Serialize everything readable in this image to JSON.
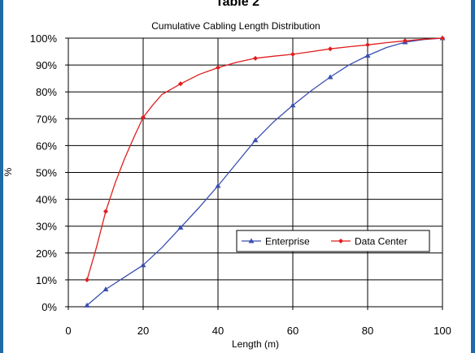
{
  "page_header": "Table 2",
  "chart_data": {
    "type": "line",
    "title": "Cumulative Cabling Length Distribution",
    "xlabel": "Length (m)",
    "ylabel": "%",
    "xlim": [
      0,
      100
    ],
    "ylim": [
      0,
      100
    ],
    "x_ticks": [
      "0",
      "20",
      "40",
      "60",
      "80",
      "100"
    ],
    "y_ticks": [
      "0%",
      "10%",
      "20%",
      "30%",
      "40%",
      "50%",
      "60%",
      "70%",
      "80%",
      "90%",
      "100%"
    ],
    "grid": true,
    "legend_position": "right-middle",
    "series": [
      {
        "name": "Enterprise",
        "color": "#3a4fb0",
        "marker": "triangle",
        "points": [
          [
            5,
            0.5
          ],
          [
            10,
            6.5
          ],
          [
            20,
            15.5
          ],
          [
            30,
            29.5
          ],
          [
            40,
            45
          ],
          [
            50,
            62
          ],
          [
            60,
            75
          ],
          [
            70,
            85.5
          ],
          [
            80,
            93.5
          ],
          [
            90,
            98.5
          ],
          [
            100,
            100
          ]
        ],
        "curve": [
          [
            5,
            0.5
          ],
          [
            10,
            6.5
          ],
          [
            15,
            11
          ],
          [
            20,
            15.5
          ],
          [
            25,
            22
          ],
          [
            30,
            29.5
          ],
          [
            35,
            37
          ],
          [
            40,
            45
          ],
          [
            45,
            53.5
          ],
          [
            50,
            62
          ],
          [
            55,
            69
          ],
          [
            60,
            75
          ],
          [
            65,
            80.5
          ],
          [
            70,
            85.5
          ],
          [
            75,
            90
          ],
          [
            80,
            93.5
          ],
          [
            85,
            96.5
          ],
          [
            90,
            98.5
          ],
          [
            95,
            99.5
          ],
          [
            100,
            100
          ]
        ]
      },
      {
        "name": "Data Center",
        "color": "#e01d1d",
        "marker": "diamond",
        "points": [
          [
            5,
            10
          ],
          [
            10,
            35.5
          ],
          [
            20,
            70.5
          ],
          [
            30,
            83
          ],
          [
            40,
            89
          ],
          [
            50,
            92.5
          ],
          [
            60,
            94
          ],
          [
            70,
            96
          ],
          [
            80,
            97.5
          ],
          [
            90,
            99
          ],
          [
            100,
            100
          ]
        ],
        "curve": [
          [
            5,
            10
          ],
          [
            7.5,
            22
          ],
          [
            10,
            35.5
          ],
          [
            12.5,
            46
          ],
          [
            15,
            55
          ],
          [
            17.5,
            63
          ],
          [
            20,
            70.5
          ],
          [
            22.5,
            75
          ],
          [
            25,
            79
          ],
          [
            27.5,
            81
          ],
          [
            30,
            83
          ],
          [
            35,
            86.5
          ],
          [
            40,
            89
          ],
          [
            45,
            91
          ],
          [
            50,
            92.5
          ],
          [
            55,
            93.3
          ],
          [
            60,
            94
          ],
          [
            65,
            95
          ],
          [
            70,
            96
          ],
          [
            75,
            96.8
          ],
          [
            80,
            97.5
          ],
          [
            85,
            98.3
          ],
          [
            90,
            99
          ],
          [
            95,
            99.6
          ],
          [
            100,
            100
          ]
        ]
      }
    ]
  }
}
